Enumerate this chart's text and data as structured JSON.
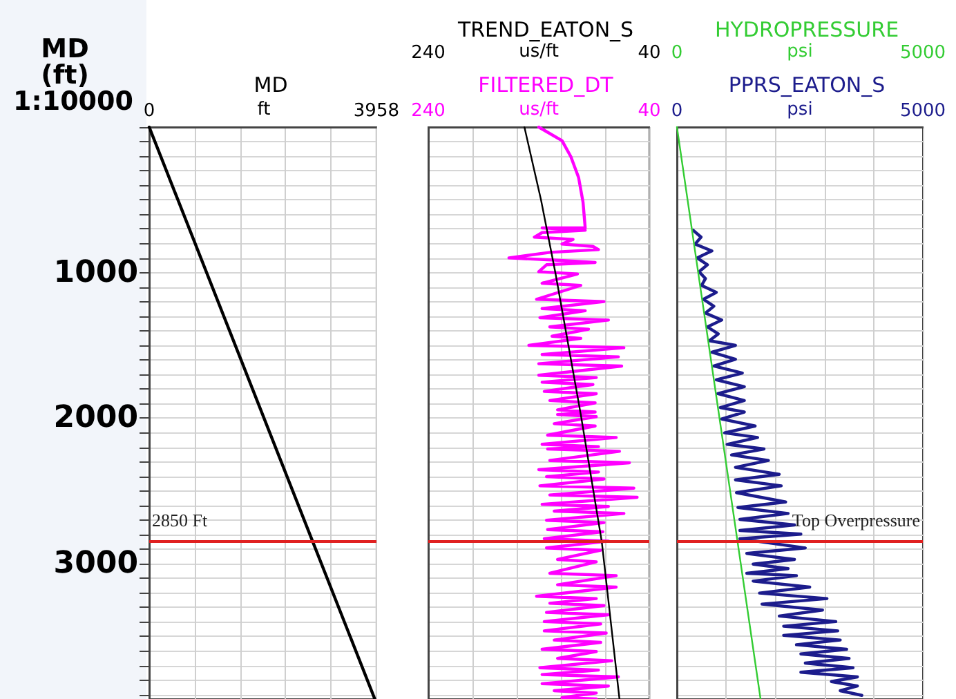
{
  "chart_data": [
    {
      "type": "line",
      "orientation": "horizontal",
      "ylabel": "MD (ft)",
      "subtitle": "1:10000",
      "xlabel": "ft",
      "xlim": [
        0,
        3958
      ],
      "xticks": [
        0,
        {
          "value": 791.6,
          "label": null
        },
        {
          "value": 1583.2,
          "label": null
        },
        {
          "value": 2374.8,
          "label": null
        },
        {
          "value": 3166.4,
          "label": null
        },
        3958
      ],
      "ylim": [
        3930,
        0
      ],
      "yticks": [
        {
          "value": 0,
          "label": null
        },
        {
          "value": 100,
          "label": null
        },
        {
          "value": 200,
          "label": null
        },
        {
          "value": 300,
          "label": null
        },
        {
          "value": 400,
          "label": null
        },
        {
          "value": 500,
          "label": null
        },
        {
          "value": 600,
          "label": null
        },
        {
          "value": 700,
          "label": null
        },
        {
          "value": 800,
          "label": null
        },
        {
          "value": 900,
          "label": null
        },
        1000,
        {
          "value": 1100,
          "label": null
        },
        {
          "value": 1200,
          "label": null
        },
        {
          "value": 1300,
          "label": null
        },
        {
          "value": 1400,
          "label": null
        },
        {
          "value": 1500,
          "label": null
        },
        {
          "value": 1600,
          "label": null
        },
        {
          "value": 1700,
          "label": null
        },
        {
          "value": 1800,
          "label": null
        },
        {
          "value": 1900,
          "label": null
        },
        2000,
        {
          "value": 2100,
          "label": null
        },
        {
          "value": 2200,
          "label": null
        },
        {
          "value": 2300,
          "label": null
        },
        {
          "value": 2400,
          "label": null
        },
        {
          "value": 2500,
          "label": null
        },
        {
          "value": 2600,
          "label": null
        },
        {
          "value": 2700,
          "label": null
        },
        {
          "value": 2800,
          "label": null
        },
        {
          "value": 2900,
          "label": null
        },
        3000,
        {
          "value": 3100,
          "label": null
        },
        {
          "value": 3200,
          "label": null
        },
        {
          "value": 3300,
          "label": null
        },
        {
          "value": 3400,
          "label": null
        },
        {
          "value": 3500,
          "label": null
        },
        {
          "value": 3600,
          "label": null
        },
        {
          "value": 3700,
          "label": null
        },
        {
          "value": 3800,
          "label": null
        },
        {
          "value": 3900,
          "label": null
        }
      ],
      "grid": true,
      "legend": "top",
      "series": [
        {
          "name": "MD",
          "color": "#000000",
          "x": [
            0,
            3930
          ],
          "values": [
            0,
            3930
          ]
        }
      ],
      "ref_lines": [
        {
          "axis": "y",
          "value": 2850,
          "label": "2850 Ft",
          "color": "#e02020"
        }
      ]
    },
    {
      "type": "line",
      "orientation": "horizontal",
      "xlabel": "us/ft",
      "x2label": "us/ft",
      "xlim": [
        240,
        40
      ],
      "xticks": [
        240,
        {
          "value": 200,
          "label": null
        },
        {
          "value": 160,
          "label": null
        },
        {
          "value": 120,
          "label": null
        },
        {
          "value": 80,
          "label": null
        },
        40
      ],
      "x2lim": [
        240,
        40
      ],
      "x2ticks": [
        240,
        40
      ],
      "ylim": [
        3930,
        0
      ],
      "yticks": [
        0,
        100,
        200,
        300,
        400,
        500,
        600,
        700,
        800,
        900,
        1000,
        1100,
        1200,
        1300,
        1400,
        1500,
        1600,
        1700,
        1800,
        1900,
        2000,
        2100,
        2200,
        2300,
        2400,
        2500,
        2600,
        2700,
        2800,
        2900,
        3000,
        3100,
        3200,
        3300,
        3400,
        3500,
        3600,
        3700,
        3800,
        3900
      ],
      "tick_labels": "x",
      "grid": true,
      "legend": "top",
      "series": [
        {
          "name": "FILTERED_DT",
          "color": "#ff00ff",
          "x": [
            0,
            93,
            203,
            346,
            514,
            693,
            693,
            709,
            725,
            756,
            772,
            804,
            820,
            842,
            861,
            899,
            914,
            930,
            946,
            994,
            1009,
            1073,
            1088,
            1183,
            1199,
            1247,
            1262,
            1310,
            1326,
            1373,
            1389,
            1437,
            1452,
            1500,
            1516,
            1563,
            1579,
            1626,
            1642,
            1705,
            1721,
            1753,
            1769,
            1816,
            1832,
            1879,
            1895,
            1943,
            1958,
            1975,
            1990,
            2038,
            2054,
            2117,
            2133,
            2180,
            2196,
            2212,
            2228,
            2291,
            2307,
            2354,
            2370,
            2402,
            2418,
            2465,
            2481,
            2528,
            2544,
            2592,
            2607,
            2639,
            2655,
            2702,
            2718,
            2766,
            2781,
            2829,
            2845,
            2892,
            2908,
            2971,
            2987,
            3066,
            3082,
            3145,
            3161,
            3224,
            3240,
            3272,
            3288,
            3335,
            3351,
            3398,
            3414,
            3462,
            3477,
            3525,
            3541,
            3588,
            3604,
            3651,
            3667,
            3715,
            3731,
            3762,
            3778,
            3825,
            3841,
            3873,
            3889,
            3920,
            3930
          ],
          "values": [
            140,
            119,
            111,
            104,
            100,
            98,
            137,
            98,
            137,
            144,
            109,
            119,
            91,
            86,
            130,
            167,
            126,
            89,
            133,
            140,
            105,
            137,
            102,
            142,
            81,
            137,
            98,
            139,
            77,
            130,
            95,
            128,
            102,
            149,
            63,
            137,
            68,
            140,
            65,
            140,
            88,
            137,
            91,
            135,
            88,
            130,
            89,
            123,
            89,
            123,
            88,
            126,
            89,
            132,
            70,
            137,
            86,
            132,
            67,
            130,
            58,
            140,
            86,
            133,
            81,
            139,
            54,
            130,
            51,
            137,
            77,
            126,
            63,
            133,
            81,
            132,
            82,
            135,
            77,
            133,
            84,
            123,
            88,
            130,
            70,
            123,
            70,
            142,
            88,
            130,
            81,
            133,
            77,
            135,
            84,
            135,
            79,
            126,
            84,
            137,
            88,
            123,
            74,
            139,
            86,
            137,
            68,
            137,
            77,
            126,
            88,
            119,
            88
          ]
        },
        {
          "name": "TREND_EATON_S",
          "color": "#000000",
          "axis": "x2",
          "x": [
            0,
            500,
            1000,
            1975,
            2850,
            3930
          ],
          "values": [
            153,
            138,
            125,
            102,
            83,
            67
          ]
        }
      ],
      "ref_lines": [
        {
          "axis": "y",
          "value": 2850,
          "label": null,
          "color": "#e02020"
        }
      ]
    },
    {
      "type": "line",
      "orientation": "horizontal",
      "xlabel": "psi",
      "x2label": "psi",
      "xlim": [
        0,
        5000
      ],
      "xticks": [
        0,
        {
          "value": 1000,
          "label": null
        },
        {
          "value": 2000,
          "label": null
        },
        {
          "value": 3000,
          "label": null
        },
        {
          "value": 4000,
          "label": null
        },
        5000
      ],
      "x2lim": [
        0,
        5000
      ],
      "x2ticks": [
        0,
        5000
      ],
      "ylim": [
        3930,
        0
      ],
      "yticks": [
        0,
        100,
        200,
        300,
        400,
        500,
        600,
        700,
        800,
        900,
        1000,
        1100,
        1200,
        1300,
        1400,
        1500,
        1600,
        1700,
        1800,
        1900,
        2000,
        2100,
        2200,
        2300,
        2400,
        2500,
        2600,
        2700,
        2800,
        2900,
        3000,
        3100,
        3200,
        3300,
        3400,
        3500,
        3600,
        3700,
        3800,
        3900
      ],
      "tick_labels": "x",
      "grid": true,
      "legend": "top",
      "series": [
        {
          "name": "PPRS_EATON_S",
          "color": "#1c1c8c",
          "x": [
            709,
            756,
            804,
            851,
            899,
            946,
            994,
            1041,
            1088,
            1136,
            1183,
            1231,
            1278,
            1326,
            1373,
            1421,
            1468,
            1500,
            1547,
            1595,
            1642,
            1690,
            1737,
            1784,
            1832,
            1879,
            1927,
            1958,
            2006,
            2054,
            2101,
            2133,
            2180,
            2212,
            2253,
            2291,
            2338,
            2386,
            2424,
            2465,
            2512,
            2576,
            2614,
            2655,
            2696,
            2734,
            2772,
            2797,
            2829,
            2892,
            2930,
            2971,
            3003,
            3034,
            3066,
            3082,
            3120,
            3161,
            3202,
            3240,
            3278,
            3319,
            3360,
            3398,
            3430,
            3462,
            3493,
            3525,
            3557,
            3588,
            3620,
            3651,
            3683,
            3715,
            3746,
            3778,
            3810,
            3841,
            3873,
            3905
          ],
          "values": [
            330,
            490,
            370,
            710,
            410,
            620,
            450,
            580,
            500,
            800,
            540,
            750,
            580,
            910,
            620,
            840,
            660,
            1190,
            710,
            1190,
            750,
            1330,
            800,
            1370,
            830,
            1370,
            880,
            1370,
            910,
            1590,
            970,
            1640,
            1020,
            1770,
            1110,
            1860,
            1190,
            2080,
            1190,
            2120,
            1210,
            2210,
            1240,
            2260,
            1280,
            2390,
            1280,
            2520,
            1280,
            2610,
            1420,
            2390,
            1550,
            2260,
            1420,
            2430,
            1550,
            2700,
            1680,
            3050,
            1730,
            2960,
            2080,
            3230,
            2170,
            3270,
            2170,
            3320,
            2430,
            3450,
            2520,
            3500,
            2610,
            3580,
            2520,
            3670,
            3140,
            3670,
            3320,
            3760
          ]
        },
        {
          "name": "HYDROPRESSURE",
          "color": "#33cc33",
          "axis": "x2",
          "x": [
            0,
            3930
          ],
          "values": [
            0,
            1700
          ]
        }
      ],
      "ref_lines": [
        {
          "axis": "y",
          "value": 2850,
          "label": "Top Overpressure",
          "color": "#e02020"
        }
      ]
    }
  ]
}
